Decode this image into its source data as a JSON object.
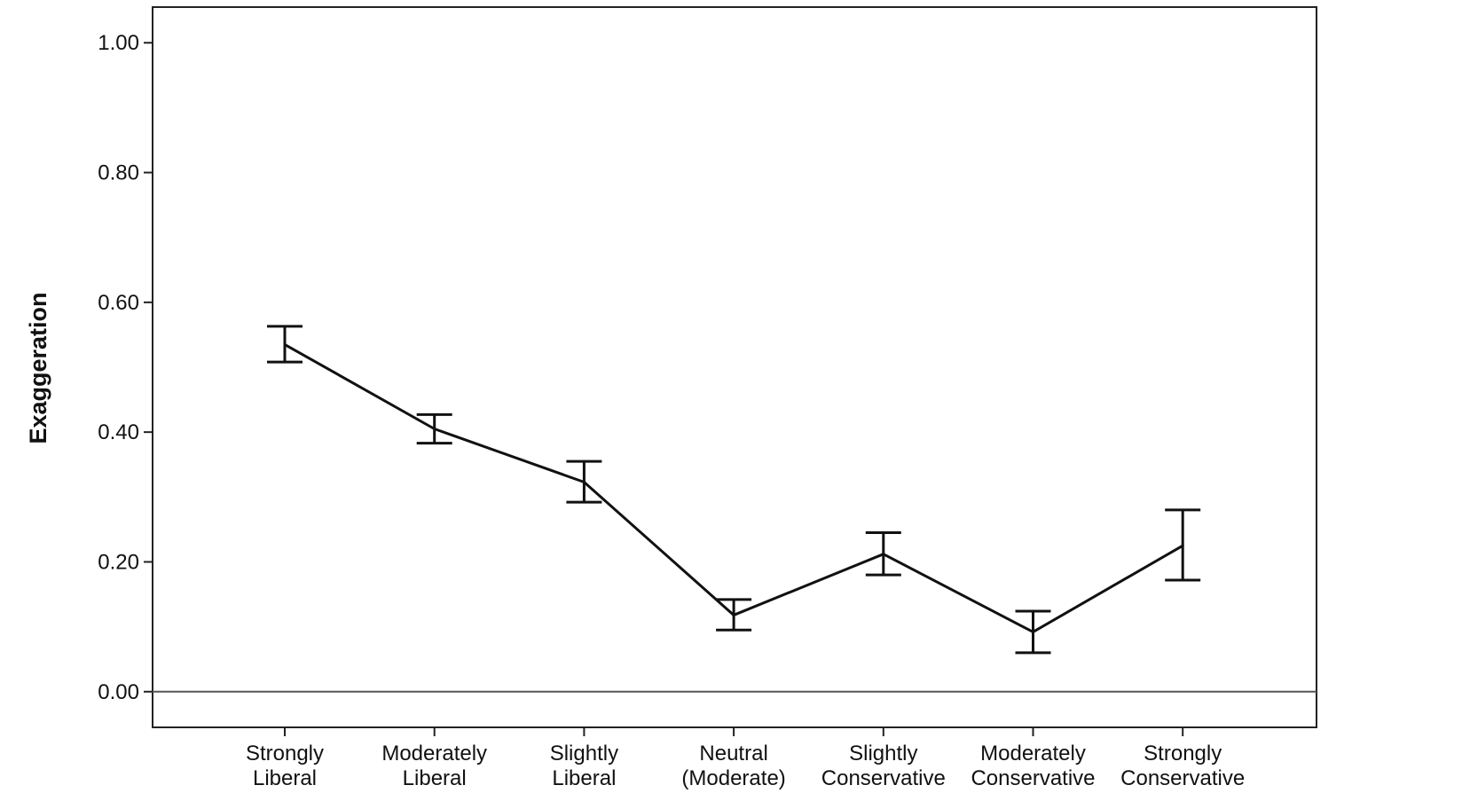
{
  "chart_data": {
    "type": "line",
    "ylabel": "Exaggeration",
    "xlabel": "",
    "ylim": [
      -0.055,
      1.055
    ],
    "yticks": [
      {
        "value": 0.0,
        "label": "0.00"
      },
      {
        "value": 0.2,
        "label": "0.20"
      },
      {
        "value": 0.4,
        "label": "0.40"
      },
      {
        "value": 0.6,
        "label": "0.60"
      },
      {
        "value": 0.8,
        "label": "0.80"
      },
      {
        "value": 1.0,
        "label": "1.00"
      }
    ],
    "categories": [
      {
        "line1": "Strongly",
        "line2": "Liberal"
      },
      {
        "line1": "Moderately",
        "line2": "Liberal"
      },
      {
        "line1": "Slightly",
        "line2": "Liberal"
      },
      {
        "line1": "Neutral",
        "line2": "(Moderate)"
      },
      {
        "line1": "Slightly",
        "line2": "Conservative"
      },
      {
        "line1": "Moderately",
        "line2": "Conservative"
      },
      {
        "line1": "Strongly",
        "line2": "Conservative"
      }
    ],
    "series": [
      {
        "values": [
          0.535,
          0.405,
          0.323,
          0.118,
          0.212,
          0.092,
          0.225
        ],
        "error_low": [
          0.508,
          0.383,
          0.292,
          0.095,
          0.18,
          0.06,
          0.172
        ],
        "error_high": [
          0.563,
          0.427,
          0.355,
          0.142,
          0.245,
          0.124,
          0.28
        ],
        "color": "#111111"
      }
    ],
    "reference_line": 0.0,
    "grid": false,
    "legend": "none"
  }
}
